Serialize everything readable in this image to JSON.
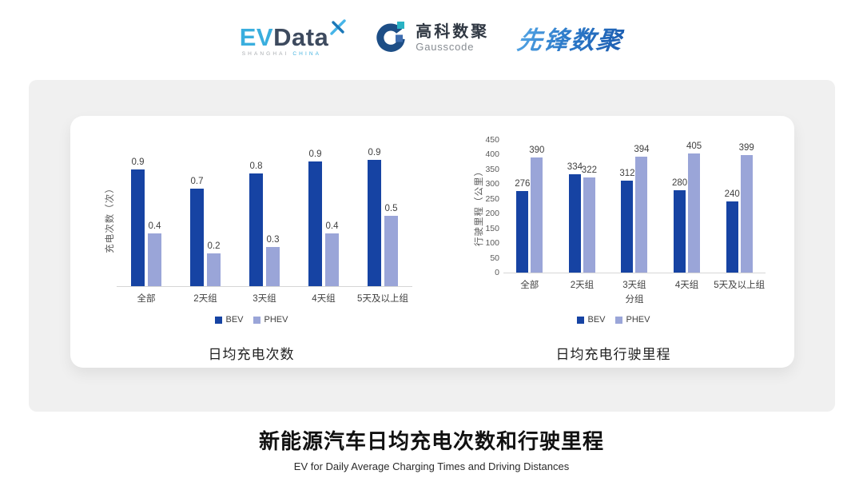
{
  "header": {
    "evdata": {
      "ev": "EV",
      "data": "Data",
      "sub_left": "SHANGHAI",
      "sub_right": "CHINA"
    },
    "gausscode": {
      "cn": "高科数聚",
      "en": "Gausscode"
    },
    "pioneer": {
      "text": "先锋数聚"
    }
  },
  "colors": {
    "bev": "#1643a3",
    "phev": "#9aa5d8",
    "baseline": "#d6d6d6",
    "panel_bg": "#f0f0f0",
    "card_bg": "#ffffff",
    "evdata_blue": "#3aaede",
    "gausscode_navy": "#1d4e86",
    "pioneer_blue": "#2d7bca"
  },
  "chart_data": [
    {
      "type": "bar",
      "title": "日均充电次数",
      "ylabel": "充电次数（次）",
      "xlabel": "",
      "categories": [
        "全部",
        "2天组",
        "3天组",
        "4天组",
        "5天及以上组"
      ],
      "series": [
        {
          "name": "BEV",
          "color": "#1643a3",
          "values": [
            0.9,
            0.7,
            0.8,
            0.9,
            0.9
          ],
          "labels": [
            "0.9",
            "0.7",
            "0.8",
            "0.9",
            "0.9"
          ],
          "values_precise": [
            0.86,
            0.72,
            0.83,
            0.92,
            0.93
          ]
        },
        {
          "name": "PHEV",
          "color": "#9aa5d8",
          "values": [
            0.4,
            0.2,
            0.3,
            0.4,
            0.5
          ],
          "labels": [
            "0.4",
            "0.2",
            "0.3",
            "0.4",
            "0.5"
          ],
          "values_precise": [
            0.39,
            0.24,
            0.29,
            0.39,
            0.52
          ]
        }
      ],
      "ylim": [
        0,
        1
      ],
      "yticks": [],
      "grid": false,
      "legend": [
        "BEV",
        "PHEV"
      ],
      "legend_position": "bottom"
    },
    {
      "type": "bar",
      "title": "日均充电行驶里程",
      "ylabel": "行驶里程（公里）",
      "xlabel": "分组",
      "categories": [
        "全部",
        "2天组",
        "3天组",
        "4天组",
        "5天及以上组"
      ],
      "series": [
        {
          "name": "BEV",
          "color": "#1643a3",
          "values": [
            276,
            334,
            312,
            280,
            240
          ],
          "labels": [
            "276",
            "334",
            "312",
            "280",
            "240"
          ]
        },
        {
          "name": "PHEV",
          "color": "#9aa5d8",
          "values": [
            390,
            322,
            394,
            405,
            399
          ],
          "labels": [
            "390",
            "322",
            "394",
            "405",
            "399"
          ]
        }
      ],
      "ylim": [
        0,
        450
      ],
      "yticks": [
        0,
        50,
        100,
        150,
        200,
        250,
        300,
        350,
        400,
        450
      ],
      "grid": false,
      "legend": [
        "BEV",
        "PHEV"
      ],
      "legend_position": "bottom"
    }
  ],
  "footer": {
    "title": "新能源汽车日均充电次数和行驶里程",
    "subtitle": "EV for Daily Average Charging Times and Driving Distances"
  }
}
